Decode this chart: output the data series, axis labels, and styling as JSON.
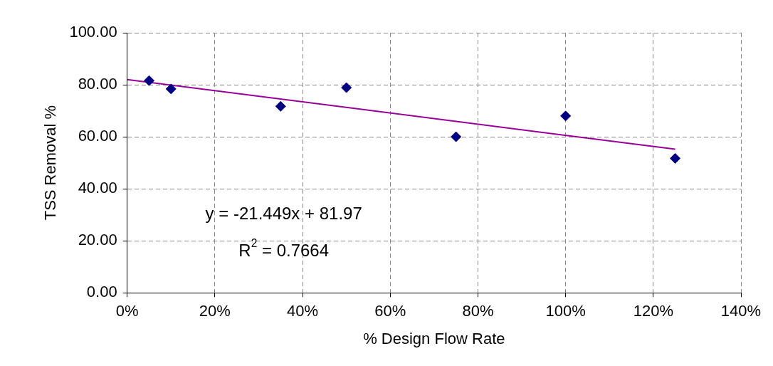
{
  "chart_data": {
    "type": "scatter",
    "xlabel": "% Design Flow Rate",
    "ylabel": "TSS Removal %",
    "series": [
      {
        "color": "#000080",
        "marker": "diamond",
        "x": [
          0.05,
          0.1,
          0.35,
          0.5,
          0.75,
          1.0,
          1.25
        ],
        "values": [
          81.6,
          78.4,
          71.7,
          78.9,
          60.0,
          68.0,
          51.7
        ]
      },
      {
        "type": "line",
        "color": "#990099",
        "marker": "none",
        "line_style": "solid",
        "x": [
          0,
          1.25
        ],
        "values": [
          82.0,
          55.2
        ]
      }
    ],
    "xlim": [
      0,
      1.4
    ],
    "xticks": [
      {
        "value": 0,
        "label": "0%"
      },
      {
        "value": 0.2,
        "label": "20%"
      },
      {
        "value": 0.4,
        "label": "40%"
      },
      {
        "value": 0.6,
        "label": "60%"
      },
      {
        "value": 0.8,
        "label": "80%"
      },
      {
        "value": 1.0,
        "label": "100%"
      },
      {
        "value": 1.2,
        "label": "120%"
      },
      {
        "value": 1.4,
        "label": "140%"
      }
    ],
    "ylim": [
      0,
      100
    ],
    "yticks": [
      {
        "value": 0,
        "label": "0.00"
      },
      {
        "value": 20,
        "label": "20.00"
      },
      {
        "value": 40,
        "label": "40.00"
      },
      {
        "value": 60,
        "label": "60.00"
      },
      {
        "value": 80,
        "label": "80.00"
      },
      {
        "value": 100,
        "label": "100.00"
      }
    ],
    "grid": true,
    "legend": false,
    "annotations": [
      "y = -21.449x + 81.97",
      "R$^{2}$ = 0.7664"
    ]
  }
}
